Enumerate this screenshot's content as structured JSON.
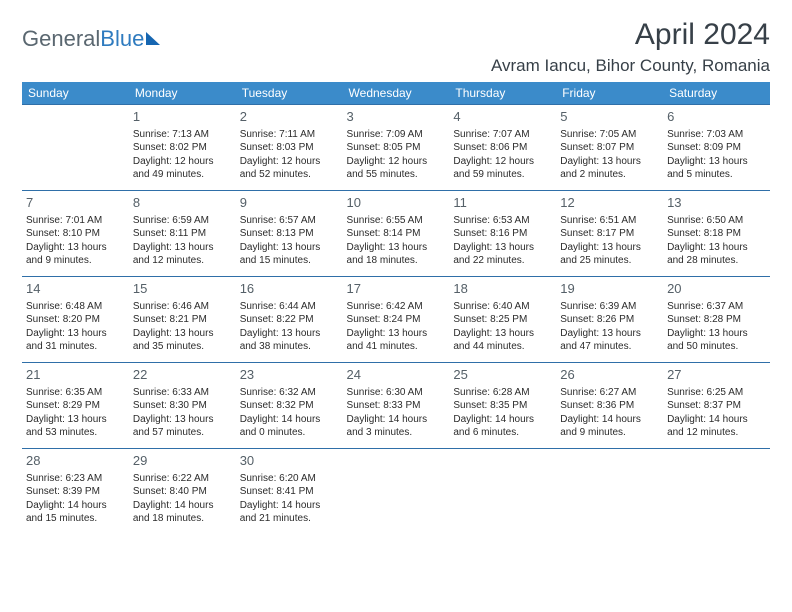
{
  "logo": {
    "general": "General",
    "blue": "Blue"
  },
  "title": {
    "month": "April 2024",
    "location": "Avram Iancu, Bihor County, Romania"
  },
  "colors": {
    "header_bg": "#3b8bca",
    "header_text": "#ffffff",
    "cell_border": "#2f6fa8",
    "daynum_color": "#556068",
    "body_text": "#2b2b2b",
    "title_color": "#374048",
    "logo_general": "#5a6770",
    "logo_blue": "#2f7bbf",
    "logo_shape": "#1666b1"
  },
  "dayHeaders": [
    "Sunday",
    "Monday",
    "Tuesday",
    "Wednesday",
    "Thursday",
    "Friday",
    "Saturday"
  ],
  "weeks": [
    [
      null,
      {
        "n": "1",
        "sr": "Sunrise: 7:13 AM",
        "ss": "Sunset: 8:02 PM",
        "dl1": "Daylight: 12 hours",
        "dl2": "and 49 minutes."
      },
      {
        "n": "2",
        "sr": "Sunrise: 7:11 AM",
        "ss": "Sunset: 8:03 PM",
        "dl1": "Daylight: 12 hours",
        "dl2": "and 52 minutes."
      },
      {
        "n": "3",
        "sr": "Sunrise: 7:09 AM",
        "ss": "Sunset: 8:05 PM",
        "dl1": "Daylight: 12 hours",
        "dl2": "and 55 minutes."
      },
      {
        "n": "4",
        "sr": "Sunrise: 7:07 AM",
        "ss": "Sunset: 8:06 PM",
        "dl1": "Daylight: 12 hours",
        "dl2": "and 59 minutes."
      },
      {
        "n": "5",
        "sr": "Sunrise: 7:05 AM",
        "ss": "Sunset: 8:07 PM",
        "dl1": "Daylight: 13 hours",
        "dl2": "and 2 minutes."
      },
      {
        "n": "6",
        "sr": "Sunrise: 7:03 AM",
        "ss": "Sunset: 8:09 PM",
        "dl1": "Daylight: 13 hours",
        "dl2": "and 5 minutes."
      }
    ],
    [
      {
        "n": "7",
        "sr": "Sunrise: 7:01 AM",
        "ss": "Sunset: 8:10 PM",
        "dl1": "Daylight: 13 hours",
        "dl2": "and 9 minutes."
      },
      {
        "n": "8",
        "sr": "Sunrise: 6:59 AM",
        "ss": "Sunset: 8:11 PM",
        "dl1": "Daylight: 13 hours",
        "dl2": "and 12 minutes."
      },
      {
        "n": "9",
        "sr": "Sunrise: 6:57 AM",
        "ss": "Sunset: 8:13 PM",
        "dl1": "Daylight: 13 hours",
        "dl2": "and 15 minutes."
      },
      {
        "n": "10",
        "sr": "Sunrise: 6:55 AM",
        "ss": "Sunset: 8:14 PM",
        "dl1": "Daylight: 13 hours",
        "dl2": "and 18 minutes."
      },
      {
        "n": "11",
        "sr": "Sunrise: 6:53 AM",
        "ss": "Sunset: 8:16 PM",
        "dl1": "Daylight: 13 hours",
        "dl2": "and 22 minutes."
      },
      {
        "n": "12",
        "sr": "Sunrise: 6:51 AM",
        "ss": "Sunset: 8:17 PM",
        "dl1": "Daylight: 13 hours",
        "dl2": "and 25 minutes."
      },
      {
        "n": "13",
        "sr": "Sunrise: 6:50 AM",
        "ss": "Sunset: 8:18 PM",
        "dl1": "Daylight: 13 hours",
        "dl2": "and 28 minutes."
      }
    ],
    [
      {
        "n": "14",
        "sr": "Sunrise: 6:48 AM",
        "ss": "Sunset: 8:20 PM",
        "dl1": "Daylight: 13 hours",
        "dl2": "and 31 minutes."
      },
      {
        "n": "15",
        "sr": "Sunrise: 6:46 AM",
        "ss": "Sunset: 8:21 PM",
        "dl1": "Daylight: 13 hours",
        "dl2": "and 35 minutes."
      },
      {
        "n": "16",
        "sr": "Sunrise: 6:44 AM",
        "ss": "Sunset: 8:22 PM",
        "dl1": "Daylight: 13 hours",
        "dl2": "and 38 minutes."
      },
      {
        "n": "17",
        "sr": "Sunrise: 6:42 AM",
        "ss": "Sunset: 8:24 PM",
        "dl1": "Daylight: 13 hours",
        "dl2": "and 41 minutes."
      },
      {
        "n": "18",
        "sr": "Sunrise: 6:40 AM",
        "ss": "Sunset: 8:25 PM",
        "dl1": "Daylight: 13 hours",
        "dl2": "and 44 minutes."
      },
      {
        "n": "19",
        "sr": "Sunrise: 6:39 AM",
        "ss": "Sunset: 8:26 PM",
        "dl1": "Daylight: 13 hours",
        "dl2": "and 47 minutes."
      },
      {
        "n": "20",
        "sr": "Sunrise: 6:37 AM",
        "ss": "Sunset: 8:28 PM",
        "dl1": "Daylight: 13 hours",
        "dl2": "and 50 minutes."
      }
    ],
    [
      {
        "n": "21",
        "sr": "Sunrise: 6:35 AM",
        "ss": "Sunset: 8:29 PM",
        "dl1": "Daylight: 13 hours",
        "dl2": "and 53 minutes."
      },
      {
        "n": "22",
        "sr": "Sunrise: 6:33 AM",
        "ss": "Sunset: 8:30 PM",
        "dl1": "Daylight: 13 hours",
        "dl2": "and 57 minutes."
      },
      {
        "n": "23",
        "sr": "Sunrise: 6:32 AM",
        "ss": "Sunset: 8:32 PM",
        "dl1": "Daylight: 14 hours",
        "dl2": "and 0 minutes."
      },
      {
        "n": "24",
        "sr": "Sunrise: 6:30 AM",
        "ss": "Sunset: 8:33 PM",
        "dl1": "Daylight: 14 hours",
        "dl2": "and 3 minutes."
      },
      {
        "n": "25",
        "sr": "Sunrise: 6:28 AM",
        "ss": "Sunset: 8:35 PM",
        "dl1": "Daylight: 14 hours",
        "dl2": "and 6 minutes."
      },
      {
        "n": "26",
        "sr": "Sunrise: 6:27 AM",
        "ss": "Sunset: 8:36 PM",
        "dl1": "Daylight: 14 hours",
        "dl2": "and 9 minutes."
      },
      {
        "n": "27",
        "sr": "Sunrise: 6:25 AM",
        "ss": "Sunset: 8:37 PM",
        "dl1": "Daylight: 14 hours",
        "dl2": "and 12 minutes."
      }
    ],
    [
      {
        "n": "28",
        "sr": "Sunrise: 6:23 AM",
        "ss": "Sunset: 8:39 PM",
        "dl1": "Daylight: 14 hours",
        "dl2": "and 15 minutes."
      },
      {
        "n": "29",
        "sr": "Sunrise: 6:22 AM",
        "ss": "Sunset: 8:40 PM",
        "dl1": "Daylight: 14 hours",
        "dl2": "and 18 minutes."
      },
      {
        "n": "30",
        "sr": "Sunrise: 6:20 AM",
        "ss": "Sunset: 8:41 PM",
        "dl1": "Daylight: 14 hours",
        "dl2": "and 21 minutes."
      },
      null,
      null,
      null,
      null
    ]
  ]
}
